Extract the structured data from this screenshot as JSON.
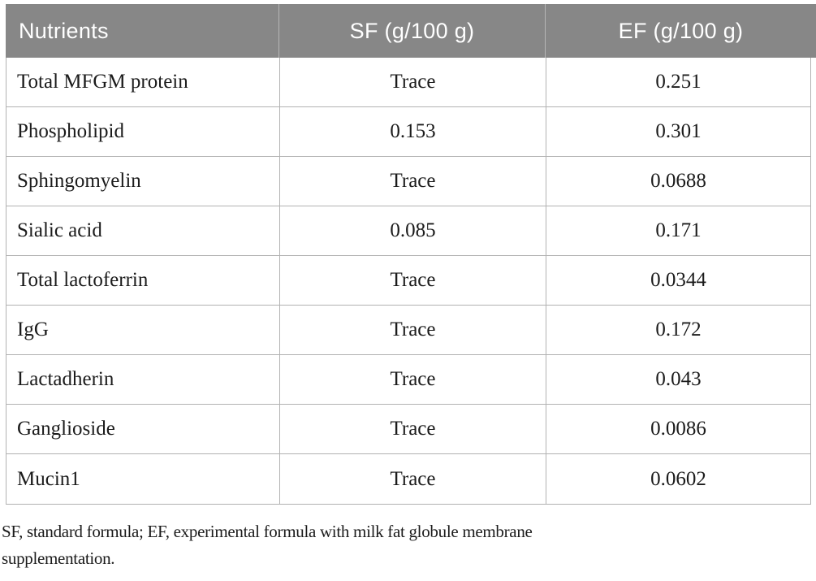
{
  "table": {
    "header": {
      "nutrients": "Nutrients",
      "sf": "SF (g/100 g)",
      "ef": "EF (g/100 g)"
    },
    "rows": [
      {
        "nutrient": "Total MFGM protein",
        "sf": "Trace",
        "ef": "0.251"
      },
      {
        "nutrient": "Phospholipid",
        "sf": "0.153",
        "ef": "0.301"
      },
      {
        "nutrient": "Sphingomyelin",
        "sf": "Trace",
        "ef": "0.0688"
      },
      {
        "nutrient": "Sialic acid",
        "sf": "0.085",
        "ef": "0.171"
      },
      {
        "nutrient": "Total lactoferrin",
        "sf": "Trace",
        "ef": "0.0344"
      },
      {
        "nutrient": "IgG",
        "sf": "Trace",
        "ef": "0.172"
      },
      {
        "nutrient": "Lactadherin",
        "sf": "Trace",
        "ef": "0.043"
      },
      {
        "nutrient": "Ganglioside",
        "sf": "Trace",
        "ef": "0.0086"
      },
      {
        "nutrient": "Mucin1",
        "sf": "Trace",
        "ef": "0.0602"
      }
    ]
  },
  "footnote": {
    "line1": "SF, standard formula; EF, experimental formula with milk fat globule membrane",
    "line2": "supplementation."
  },
  "colors": {
    "header_bg": "#878787",
    "header_text": "#ffffff",
    "grid_line": "#b2b2b2",
    "body_text": "#1b1b1b"
  }
}
